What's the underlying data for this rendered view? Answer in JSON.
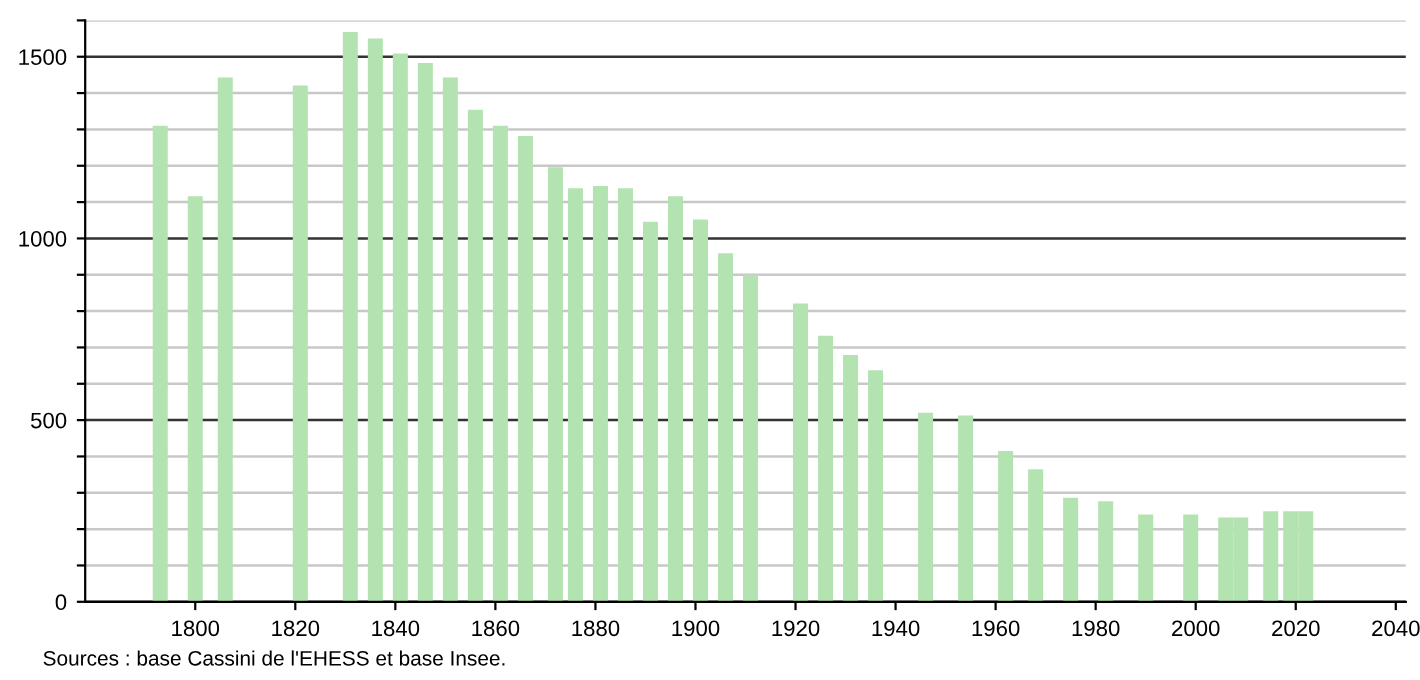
{
  "chart_data": {
    "type": "bar",
    "x": [
      1793,
      1800,
      1806,
      1821,
      1831,
      1836,
      1841,
      1846,
      1851,
      1856,
      1861,
      1866,
      1872,
      1876,
      1881,
      1886,
      1891,
      1896,
      1901,
      1906,
      1911,
      1921,
      1926,
      1931,
      1936,
      1946,
      1954,
      1962,
      1968,
      1975,
      1982,
      1990,
      1999,
      2006,
      2009,
      2015,
      2019,
      2022
    ],
    "series": [
      {
        "color": "#b3e3b0",
        "values": [
          1310,
          1116,
          1443,
          1421,
          1568,
          1550,
          1509,
          1483,
          1443,
          1354,
          1310,
          1282,
          1196,
          1138,
          1144,
          1138,
          1046,
          1116,
          1052,
          959,
          900,
          821,
          732,
          679,
          637,
          520,
          513,
          415,
          365,
          286,
          277,
          240,
          240,
          232,
          232,
          249,
          249,
          249
        ]
      }
    ],
    "xlim": [
      1778,
      2042
    ],
    "xticks": [
      1800,
      1820,
      1840,
      1860,
      1880,
      1900,
      1920,
      1940,
      1960,
      1980,
      2000,
      2020,
      2040
    ],
    "ylim": [
      0,
      1600
    ],
    "yticks": [
      0,
      {
        "value": 100,
        "label": null
      },
      {
        "value": 200,
        "label": null
      },
      {
        "value": 300,
        "label": null
      },
      {
        "value": 400,
        "label": null
      },
      500,
      {
        "value": 600,
        "label": null
      },
      {
        "value": 700,
        "label": null
      },
      {
        "value": 800,
        "label": null
      },
      {
        "value": 900,
        "label": null
      },
      1000,
      {
        "value": 1100,
        "label": null
      },
      {
        "value": 1200,
        "label": null
      },
      {
        "value": 1300,
        "label": null
      },
      {
        "value": 1400,
        "label": null
      },
      1500,
      {
        "value": 1600,
        "label": null
      }
    ],
    "grid": "y",
    "annotations": [
      "Sources : base Cassini de l'EHESS et base Insee."
    ]
  }
}
